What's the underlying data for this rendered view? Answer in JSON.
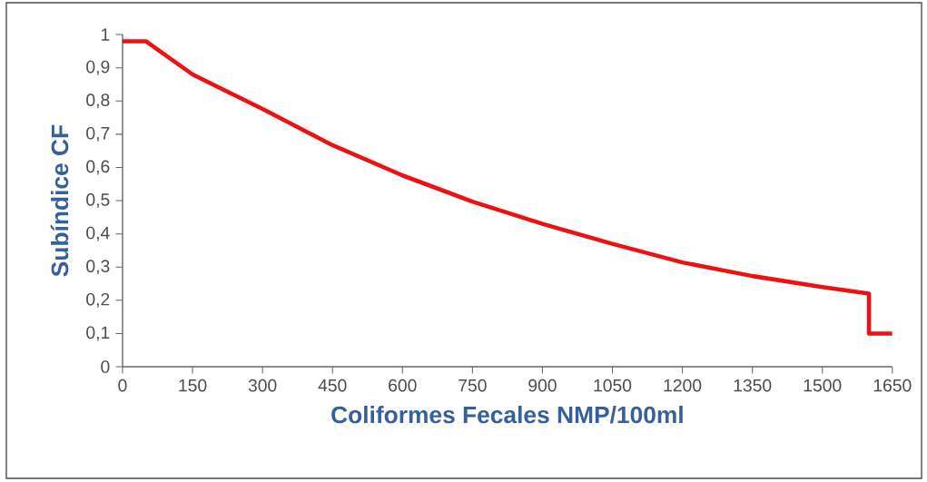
{
  "chart_data": {
    "type": "line",
    "xlabel": "Coliformes Fecales NMP/100ml",
    "ylabel": "Subíndice CF",
    "x": [
      0,
      50,
      150,
      300,
      450,
      600,
      750,
      900,
      1050,
      1200,
      1350,
      1500,
      1600,
      1600,
      1650
    ],
    "series": [
      {
        "color": "#ee1111",
        "values": [
          0.98,
          0.98,
          0.88,
          0.776,
          0.667,
          0.576,
          0.497,
          0.43,
          0.37,
          0.314,
          0.273,
          0.24,
          0.22,
          0.1,
          0.1
        ]
      }
    ],
    "xlim": [
      0,
      1650
    ],
    "ylim": [
      0,
      1
    ],
    "xticks": [
      0,
      150,
      300,
      450,
      600,
      750,
      900,
      1050,
      1200,
      1350,
      1500,
      1650
    ],
    "yticks": [
      0,
      {
        "value": 0.1,
        "label": "0,1"
      },
      {
        "value": 0.2,
        "label": "0,2"
      },
      {
        "value": 0.3,
        "label": "0,3"
      },
      {
        "value": 0.4,
        "label": "0,4"
      },
      {
        "value": 0.5,
        "label": "0,5"
      },
      {
        "value": 0.6,
        "label": "0,6"
      },
      {
        "value": 0.7,
        "label": "0,7"
      },
      {
        "value": 0.8,
        "label": "0,8"
      },
      {
        "value": 0.9,
        "label": "0,9"
      },
      1
    ],
    "grid": false,
    "legend": false,
    "marker": "none",
    "line_style": "solid"
  }
}
